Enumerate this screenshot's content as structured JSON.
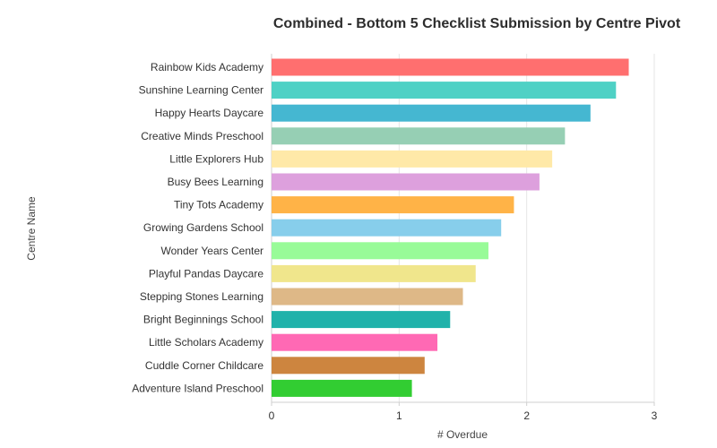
{
  "chart_data": {
    "type": "bar",
    "orientation": "horizontal",
    "title": "Combined - Bottom 5 Checklist Submission by Centre Pivot",
    "xlabel": "# Overdue",
    "ylabel": "Centre Name",
    "xlim": [
      0,
      3
    ],
    "xticks": [
      "0",
      "1",
      "2",
      "3"
    ],
    "grid": true,
    "categories": [
      "Rainbow Kids Academy",
      "Sunshine Learning Center",
      "Happy Hearts Daycare",
      "Creative Minds Preschool",
      "Little Explorers Hub",
      "Busy Bees Learning",
      "Tiny Tots Academy",
      "Growing Gardens School",
      "Wonder Years Center",
      "Playful Pandas Daycare",
      "Stepping Stones Learning",
      "Bright Beginnings School",
      "Little Scholars Academy",
      "Cuddle Corner Childcare",
      "Adventure Island Preschool"
    ],
    "values": [
      2.8,
      2.7,
      2.5,
      2.3,
      2.2,
      2.1,
      1.9,
      1.8,
      1.7,
      1.6,
      1.5,
      1.4,
      1.3,
      1.2,
      1.1
    ],
    "colors": [
      "#ff6f6f",
      "#4fd1c5",
      "#45b7d1",
      "#96cfb4",
      "#ffe9a8",
      "#dda0dd",
      "#ffb347",
      "#87ceeb",
      "#98fb98",
      "#f0e68c",
      "#deb887",
      "#20b2aa",
      "#ff69b4",
      "#cd853f",
      "#32cd32"
    ]
  }
}
